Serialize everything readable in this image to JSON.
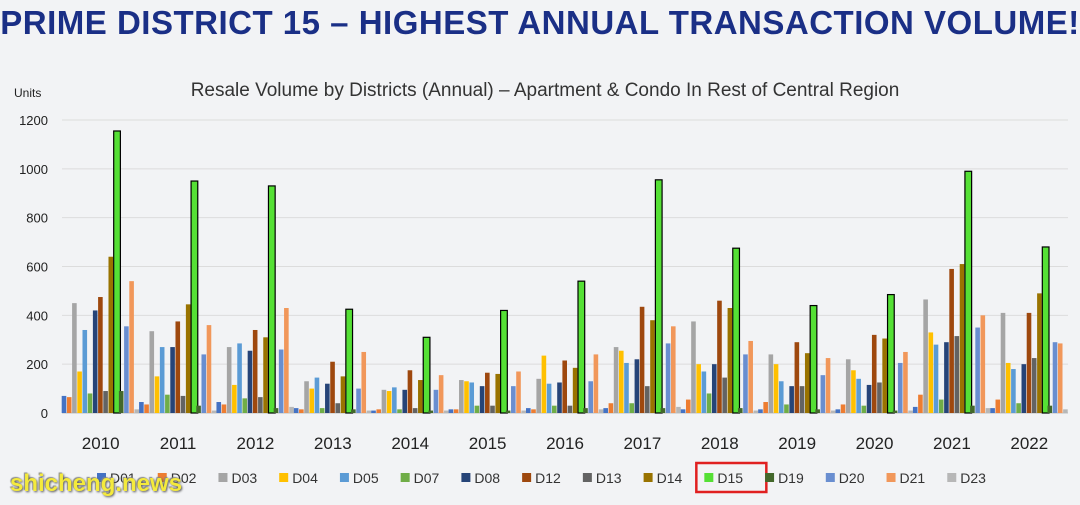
{
  "headline": "PRIME DISTRICT 15 – HIGHEST ANNUAL TRANSACTION VOLUME!",
  "watermark": "shicheng.news",
  "chart_data": {
    "type": "bar",
    "title": "Resale Volume by Districts (Annual) – Apartment & Condo In Rest of Central Region",
    "ylabel": "Units",
    "xlabel": "",
    "ylim": [
      0,
      1200
    ],
    "yticks": [
      0,
      200,
      400,
      600,
      800,
      1000,
      1200
    ],
    "grid": true,
    "legend_position": "bottom",
    "highlighted_series": "D15",
    "categories": [
      "2010",
      "2011",
      "2012",
      "2013",
      "2014",
      "2015",
      "2016",
      "2017",
      "2018",
      "2019",
      "2020",
      "2021",
      "2022"
    ],
    "series": [
      {
        "name": "D01",
        "color": "#4472c4",
        "values": [
          70,
          45,
          45,
          20,
          10,
          15,
          20,
          20,
          15,
          15,
          15,
          25,
          20
        ]
      },
      {
        "name": "D02",
        "color": "#ed7d31",
        "values": [
          65,
          35,
          35,
          15,
          15,
          15,
          15,
          40,
          55,
          45,
          35,
          75,
          55
        ]
      },
      {
        "name": "D03",
        "color": "#a5a5a5",
        "values": [
          450,
          335,
          270,
          130,
          95,
          135,
          140,
          270,
          375,
          240,
          220,
          465,
          410
        ]
      },
      {
        "name": "D04",
        "color": "#ffc000",
        "values": [
          170,
          150,
          115,
          100,
          90,
          130,
          235,
          255,
          200,
          200,
          175,
          330,
          205
        ]
      },
      {
        "name": "D05",
        "color": "#5b9bd5",
        "values": [
          340,
          270,
          285,
          145,
          105,
          125,
          120,
          205,
          170,
          130,
          140,
          280,
          180
        ]
      },
      {
        "name": "D07",
        "color": "#70ad47",
        "values": [
          80,
          75,
          60,
          20,
          15,
          30,
          30,
          40,
          80,
          35,
          30,
          55,
          40
        ]
      },
      {
        "name": "D08",
        "color": "#264478",
        "values": [
          420,
          270,
          255,
          120,
          95,
          110,
          125,
          220,
          200,
          110,
          115,
          290,
          200
        ]
      },
      {
        "name": "D12",
        "color": "#9e480e",
        "values": [
          475,
          375,
          340,
          210,
          175,
          165,
          215,
          435,
          460,
          290,
          320,
          590,
          410
        ]
      },
      {
        "name": "D13",
        "color": "#636363",
        "values": [
          90,
          70,
          65,
          40,
          20,
          30,
          30,
          110,
          145,
          110,
          125,
          315,
          225
        ]
      },
      {
        "name": "D14",
        "color": "#997300",
        "values": [
          640,
          445,
          310,
          150,
          135,
          160,
          185,
          380,
          430,
          245,
          305,
          610,
          490
        ]
      },
      {
        "name": "D15",
        "color": "#55e035",
        "values": [
          1155,
          950,
          930,
          425,
          310,
          420,
          540,
          955,
          675,
          440,
          485,
          990,
          680
        ]
      },
      {
        "name": "D19",
        "color": "#43682b",
        "values": [
          90,
          30,
          20,
          15,
          10,
          10,
          20,
          20,
          20,
          15,
          10,
          30,
          30
        ]
      },
      {
        "name": "D20",
        "color": "#698ed0",
        "values": [
          355,
          240,
          260,
          100,
          95,
          110,
          130,
          285,
          240,
          155,
          205,
          350,
          290
        ]
      },
      {
        "name": "D21",
        "color": "#f1975a",
        "values": [
          540,
          360,
          430,
          250,
          155,
          170,
          240,
          355,
          295,
          225,
          250,
          400,
          285
        ]
      },
      {
        "name": "D23",
        "color": "#b7b7b7",
        "values": [
          15,
          10,
          25,
          10,
          10,
          10,
          15,
          25,
          10,
          10,
          10,
          20,
          15
        ]
      }
    ]
  }
}
